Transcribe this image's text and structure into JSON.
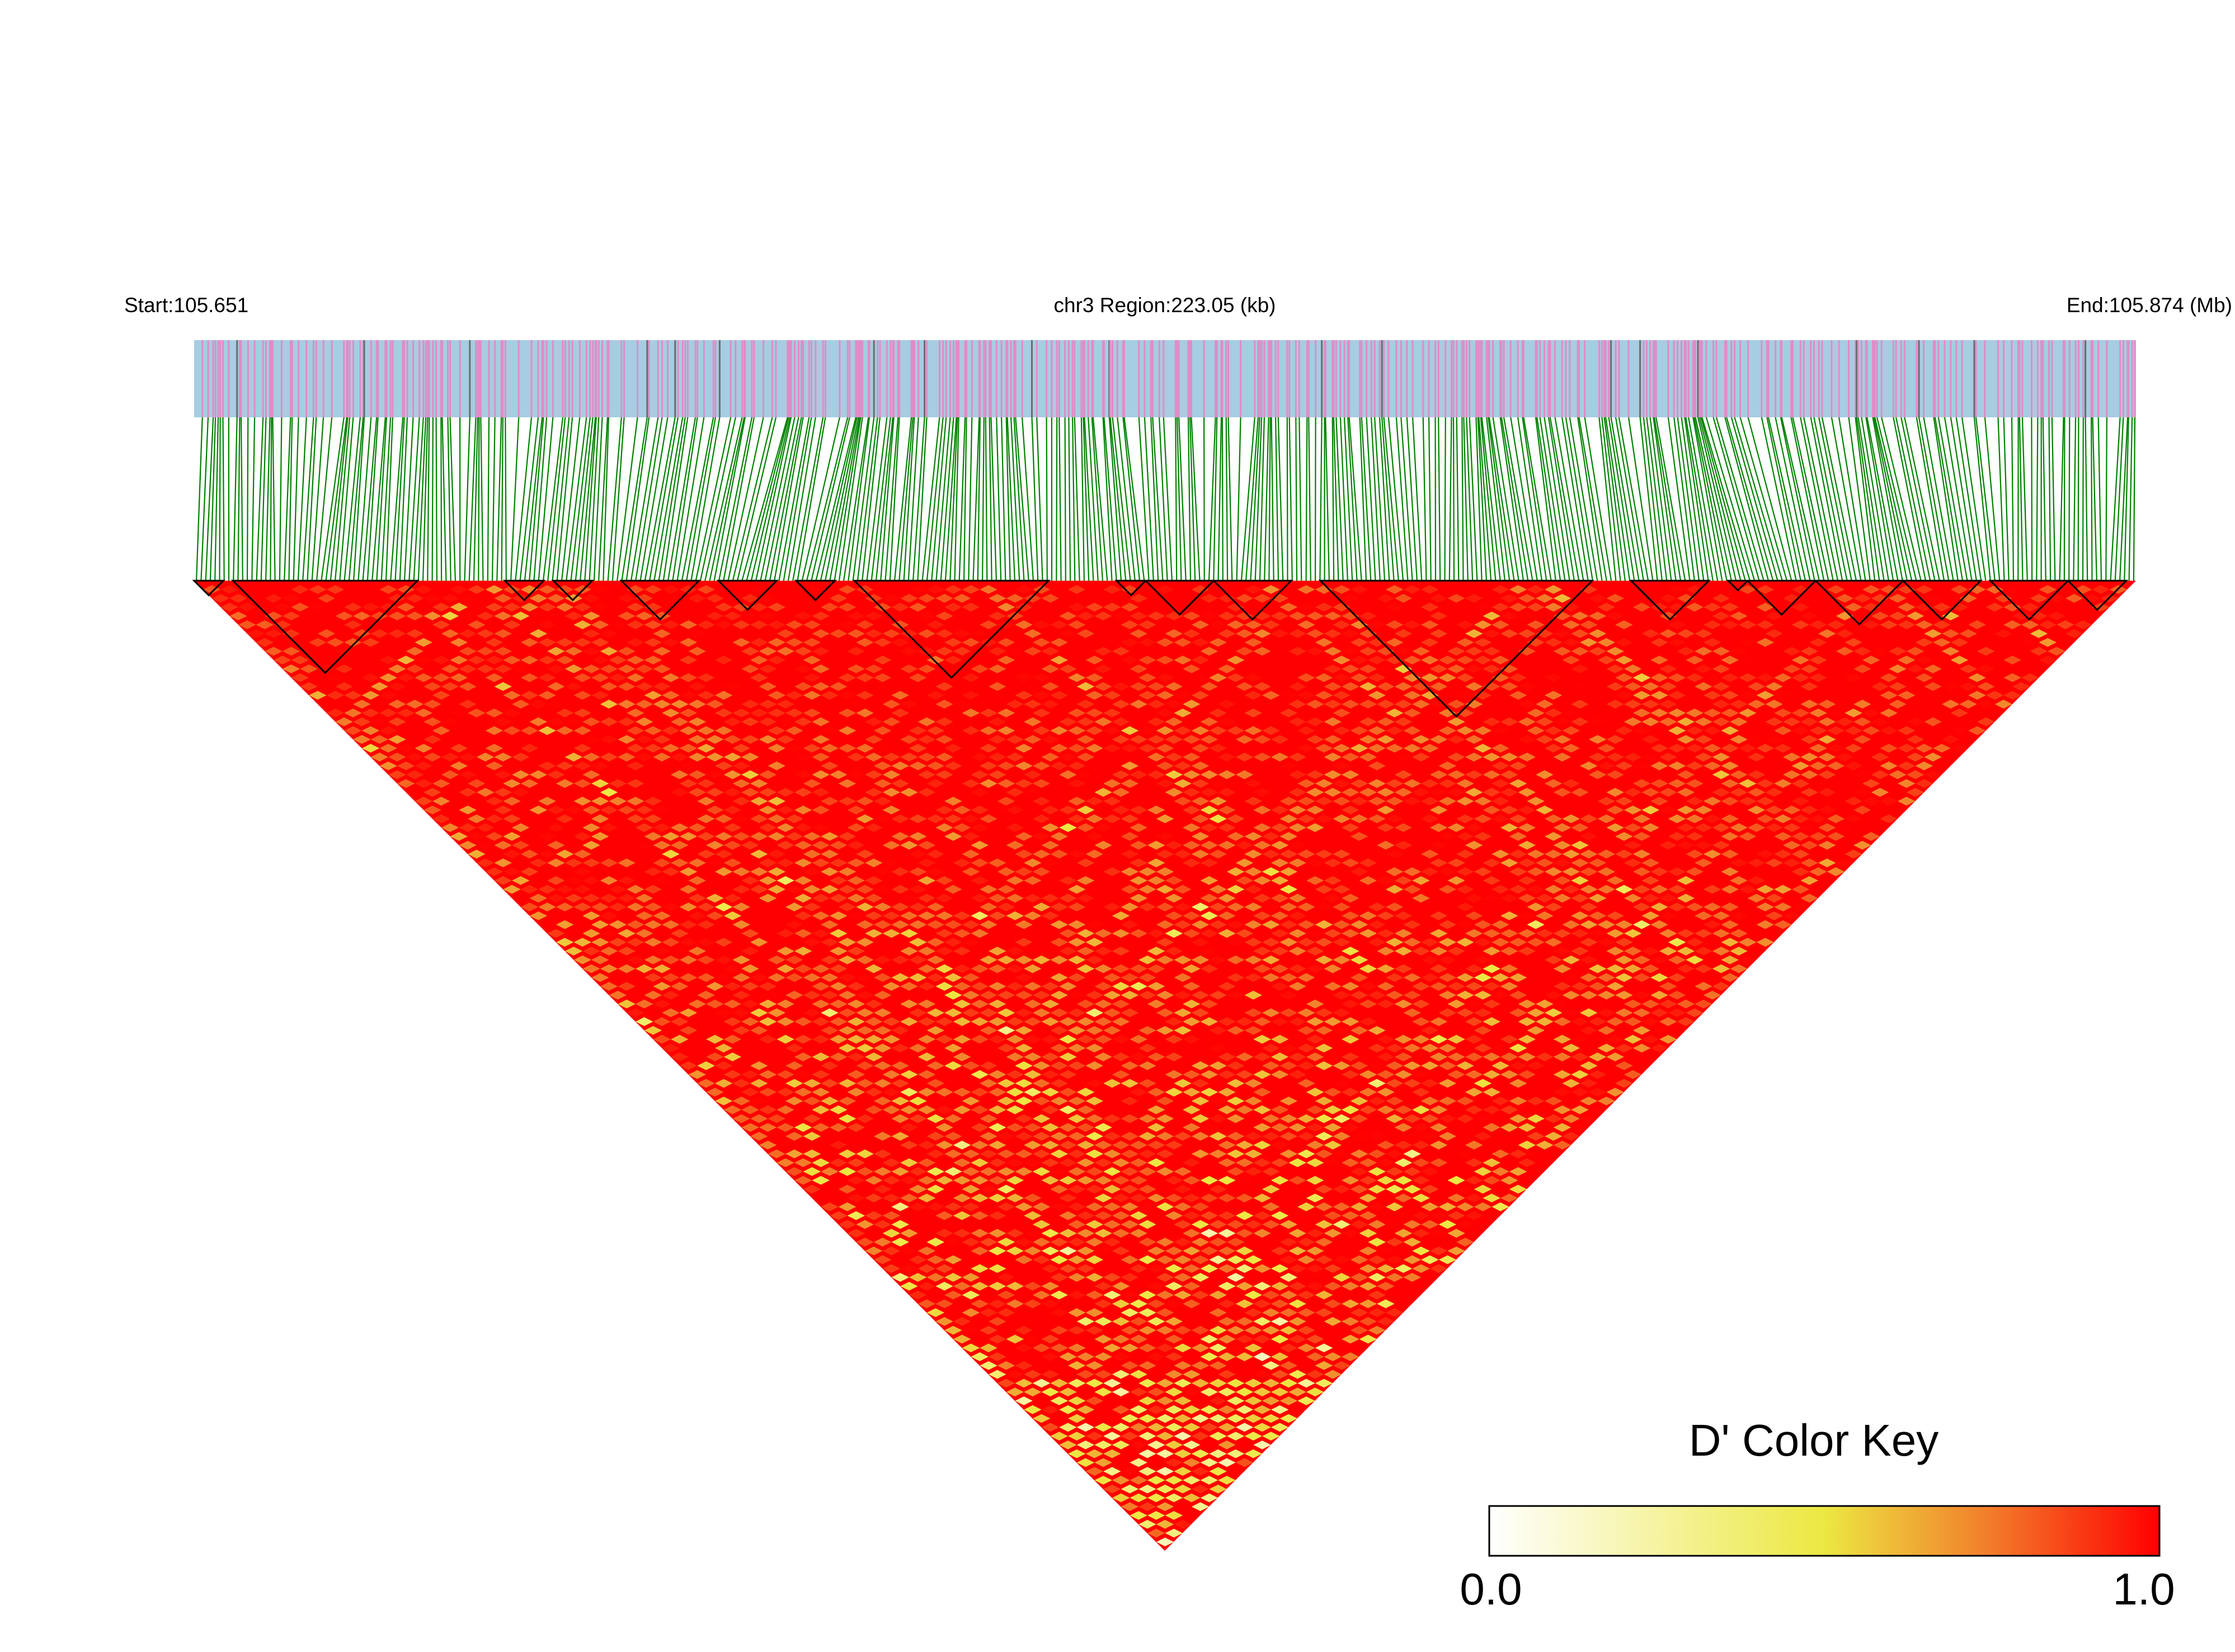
{
  "chart_data": {
    "type": "heatmap",
    "subtype": "ld-triangle",
    "title": "chr3 Region:223.05 (kb)",
    "start_label": "Start:105.651",
    "end_label": "End:105.874 (Mb)",
    "chromosome": "chr3",
    "start_mb": 105.651,
    "end_mb": 105.874,
    "region_kb": 223.05,
    "marker_count_approx": 420,
    "metric": "D'",
    "dominant_value": 1.0,
    "haplotype_blocks_fraction": [
      [
        0.0,
        0.015
      ],
      [
        0.02,
        0.115
      ],
      [
        0.16,
        0.18
      ],
      [
        0.185,
        0.205
      ],
      [
        0.22,
        0.26
      ],
      [
        0.27,
        0.3
      ],
      [
        0.31,
        0.33
      ],
      [
        0.34,
        0.44
      ],
      [
        0.475,
        0.49
      ],
      [
        0.49,
        0.525
      ],
      [
        0.525,
        0.565
      ],
      [
        0.58,
        0.72
      ],
      [
        0.74,
        0.78
      ],
      [
        0.79,
        0.8
      ],
      [
        0.8,
        0.835
      ],
      [
        0.835,
        0.88
      ],
      [
        0.88,
        0.92
      ],
      [
        0.925,
        0.965
      ],
      [
        0.965,
        0.995
      ]
    ],
    "legend": {
      "title": "D' Color Key",
      "min_label": "0.0",
      "max_label": "1.0",
      "min": 0.0,
      "max": 1.0,
      "stops": [
        {
          "value": 0.0,
          "color": "#ffffff"
        },
        {
          "value": 0.5,
          "color": "#ece842"
        },
        {
          "value": 0.75,
          "color": "#f27b2a"
        },
        {
          "value": 1.0,
          "color": "#ff0000"
        }
      ]
    }
  },
  "colors": {
    "track_background": "#a6cde2",
    "snp_tick": "#e08cc8",
    "snp_tick_dark": "#6b6b6b",
    "connector": "#008000",
    "block_outline": "#000000"
  }
}
